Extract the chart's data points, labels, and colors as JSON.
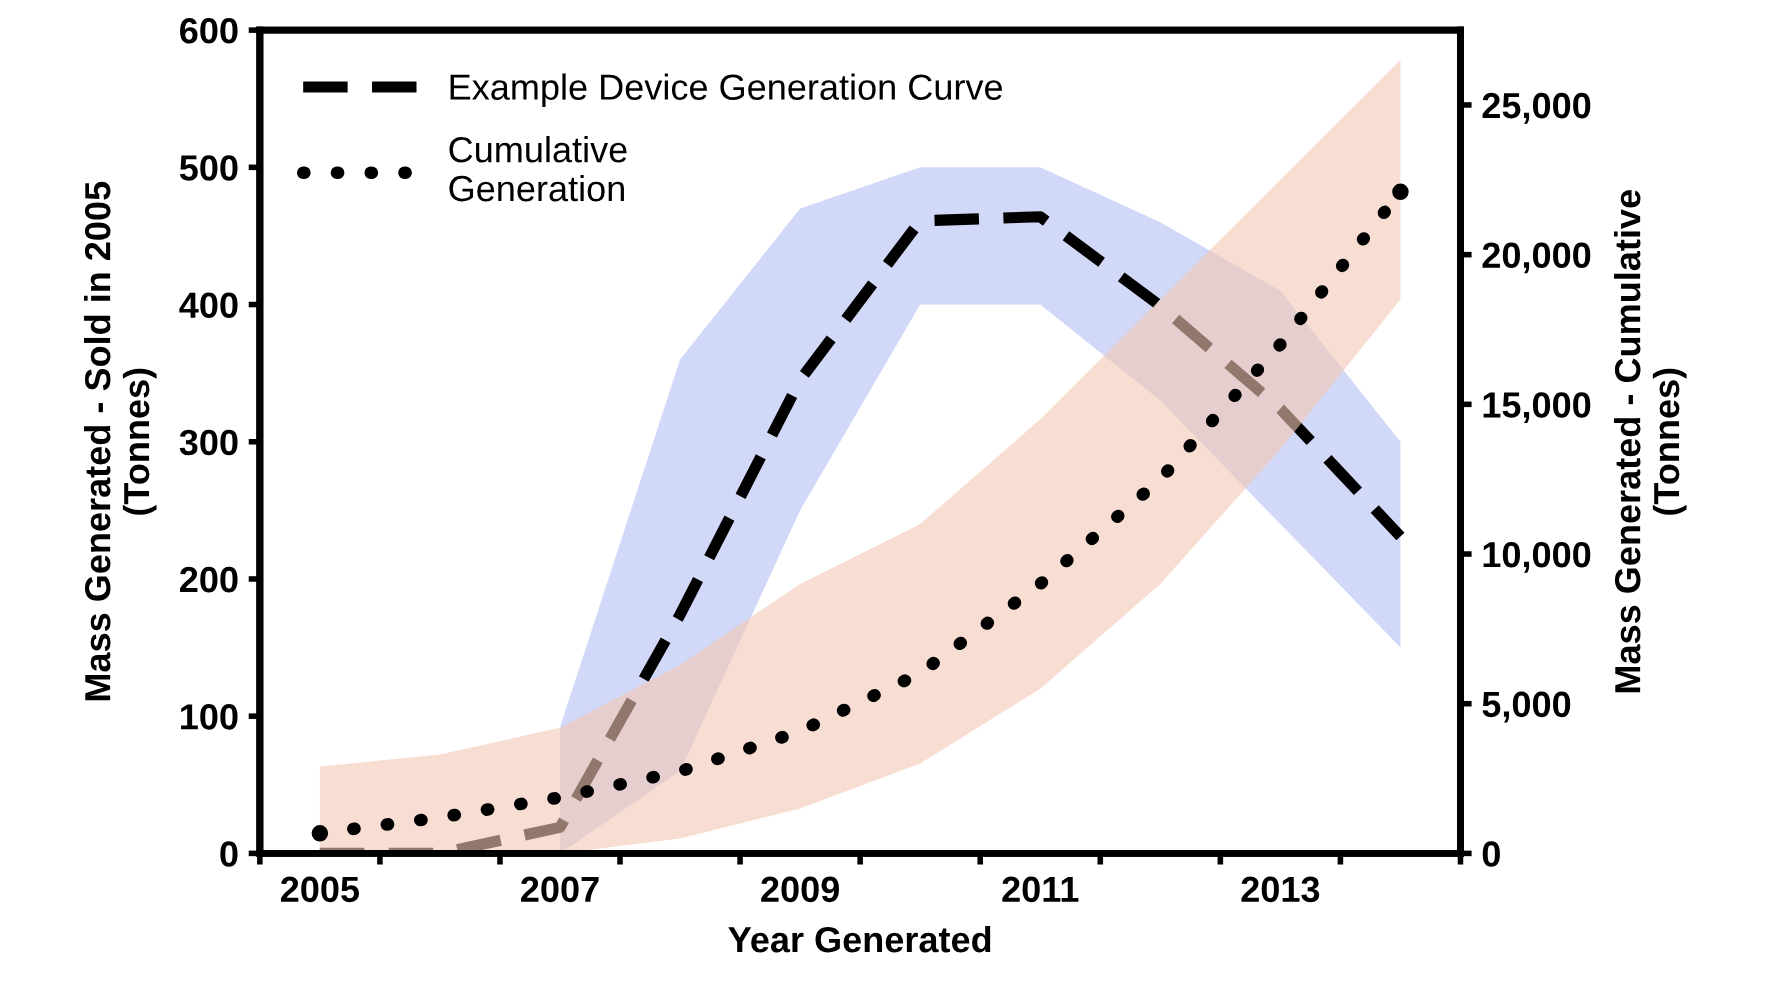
{
  "chart_data": {
    "type": "line",
    "xlabel": "Year Generated",
    "ylabel": "Mass Generated - Sold in 2005\n(Tonnes)",
    "y2label": "Mass Generated - Cumulative\n(Tonnes)",
    "x": [
      2005,
      2006,
      2007,
      2008,
      2009,
      2010,
      2011,
      2012,
      2013,
      2014
    ],
    "series": [
      {
        "name": "Example Device Generation Curve",
        "color": "#000000",
        "line_style": "dashed",
        "values": [
          0,
          0,
          19,
          174,
          345,
          461,
          464,
          399,
          324,
          231
        ],
        "lower": [
          null,
          null,
          0,
          60,
          250,
          400,
          400,
          330,
          240,
          150
        ],
        "upper": [
          null,
          null,
          92,
          360,
          470,
          500,
          500,
          460,
          410,
          300
        ]
      },
      {
        "name": "Cumulative\nGeneration",
        "color": "#000000",
        "line_style": "dotted",
        "axis": "y2",
        "values": [
          670,
          1200,
          1870,
          2740,
          4080,
          6020,
          9000,
          12500,
          17000,
          22100
        ],
        "lower": [
          0,
          0,
          0,
          500,
          1500,
          3000,
          5500,
          9000,
          13500,
          18500
        ],
        "upper": [
          2900,
          3300,
          4200,
          6300,
          9000,
          11000,
          14500,
          18500,
          22500,
          26500
        ]
      }
    ],
    "xlim": [
      2004.5,
      2014.5
    ],
    "xticks": [
      {
        "value": 2004.5,
        "label": null
      },
      {
        "value": 2005.5,
        "label": null
      },
      {
        "value": 2006.5,
        "label": null
      },
      {
        "value": 2007.5,
        "label": null
      },
      {
        "value": 2008.5,
        "label": null
      },
      {
        "value": 2009.5,
        "label": null
      },
      {
        "value": 2010.5,
        "label": null
      },
      {
        "value": 2011.5,
        "label": null
      },
      {
        "value": 2012.5,
        "label": null
      },
      {
        "value": 2013.5,
        "label": null
      },
      {
        "value": 2014.5,
        "label": null
      },
      2005,
      2007,
      2009,
      2011,
      2013
    ],
    "ylim": [
      0,
      600
    ],
    "yticks": [
      0,
      100,
      200,
      300,
      400,
      500,
      600
    ],
    "y2lim": [
      0,
      27500
    ],
    "y2ticks": [
      0,
      {
        "value": 5000,
        "label": "5,000"
      },
      {
        "value": 10000,
        "label": "10,000"
      },
      {
        "value": 15000,
        "label": "15,000"
      },
      {
        "value": 20000,
        "label": "20,000"
      },
      {
        "value": 25000,
        "label": "25,000"
      }
    ],
    "grid": false,
    "legend": "top left",
    "marker": "none"
  }
}
